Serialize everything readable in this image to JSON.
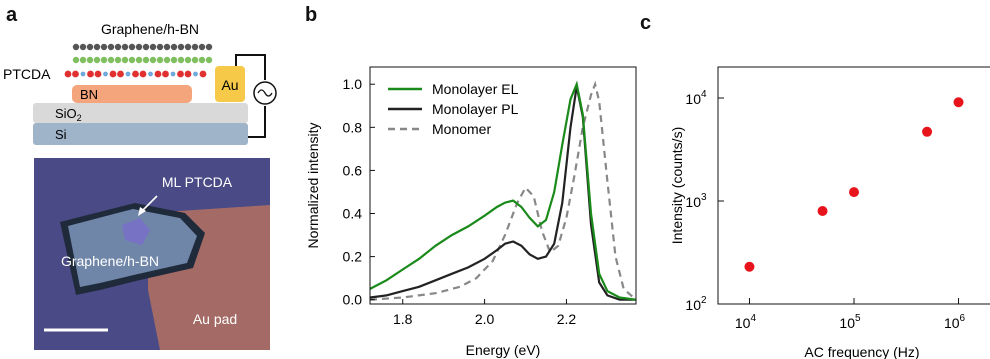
{
  "panels": {
    "a": {
      "letter": "a",
      "schematic": {
        "top_layer_label": "Graphene/h-BN",
        "ptcda_label": "PTCDA",
        "bn_label": "BN",
        "sio2_label": "SiO",
        "sio2_sub": "2",
        "si_label": "Si",
        "electrode_label": "Au",
        "colors": {
          "bn": "#f4a57c",
          "sio2": "#d9d9d9",
          "si": "#9fb4c8",
          "au": "#f7c948",
          "graphene": "#555555",
          "hbn": "#7fbf5f",
          "ptcda_red": "#e03030",
          "ptcda_blue": "#6fa8dc"
        }
      },
      "micrograph": {
        "ml_label": "ML PTCDA",
        "flake_label": "Graphene/h-BN",
        "pad_label": "Au pad",
        "colors": {
          "background": "#4a4a86",
          "pad": "#a46b66",
          "flake": "#6f86a8"
        }
      }
    },
    "b": {
      "letter": "b"
    },
    "c": {
      "letter": "c"
    }
  },
  "chart_data": [
    {
      "type": "line",
      "panel": "b",
      "title": "",
      "xlabel": "Energy (eV)",
      "ylabel": "Normalized intensity",
      "xlim": [
        1.72,
        2.37
      ],
      "ylim": [
        -0.02,
        1.08
      ],
      "xticks": [
        "1.8",
        "2.0",
        "2.2"
      ],
      "xtick_values": [
        1.8,
        2.0,
        2.2
      ],
      "yticks": [
        "0.0",
        "0.2",
        "0.4",
        "0.6",
        "0.8",
        "1.0"
      ],
      "ytick_values": [
        0.0,
        0.2,
        0.4,
        0.6,
        0.8,
        1.0
      ],
      "legend_position": "top-left",
      "series": [
        {
          "name": "Monolayer EL",
          "color": "#1a8a1a",
          "style": "solid",
          "x": [
            1.72,
            1.76,
            1.8,
            1.84,
            1.88,
            1.92,
            1.96,
            2.0,
            2.03,
            2.05,
            2.07,
            2.09,
            2.11,
            2.13,
            2.15,
            2.17,
            2.19,
            2.21,
            2.225,
            2.24,
            2.26,
            2.28,
            2.3,
            2.33,
            2.37
          ],
          "y": [
            0.05,
            0.09,
            0.14,
            0.19,
            0.25,
            0.3,
            0.34,
            0.39,
            0.43,
            0.45,
            0.46,
            0.43,
            0.38,
            0.34,
            0.37,
            0.5,
            0.72,
            0.93,
            1.0,
            0.86,
            0.4,
            0.12,
            0.04,
            0.01,
            0.0
          ]
        },
        {
          "name": "Monolayer PL",
          "color": "#222222",
          "style": "solid",
          "x": [
            1.72,
            1.76,
            1.8,
            1.84,
            1.88,
            1.92,
            1.96,
            2.0,
            2.03,
            2.05,
            2.07,
            2.09,
            2.11,
            2.13,
            2.15,
            2.17,
            2.19,
            2.21,
            2.225,
            2.24,
            2.26,
            2.28,
            2.3,
            2.33,
            2.37
          ],
          "y": [
            0.01,
            0.02,
            0.04,
            0.06,
            0.09,
            0.12,
            0.15,
            0.19,
            0.23,
            0.26,
            0.27,
            0.25,
            0.21,
            0.19,
            0.2,
            0.26,
            0.45,
            0.8,
            0.99,
            0.85,
            0.35,
            0.08,
            0.02,
            0.0,
            0.0
          ]
        },
        {
          "name": "Monomer",
          "color": "#888888",
          "style": "dashed",
          "x": [
            1.72,
            1.8,
            1.88,
            1.94,
            1.98,
            2.02,
            2.05,
            2.08,
            2.1,
            2.12,
            2.14,
            2.16,
            2.18,
            2.2,
            2.22,
            2.24,
            2.26,
            2.27,
            2.28,
            2.3,
            2.32,
            2.34,
            2.37
          ],
          "y": [
            0.0,
            0.01,
            0.03,
            0.06,
            0.1,
            0.18,
            0.3,
            0.45,
            0.52,
            0.48,
            0.32,
            0.22,
            0.25,
            0.38,
            0.58,
            0.8,
            0.95,
            1.0,
            0.92,
            0.55,
            0.2,
            0.05,
            0.0
          ]
        }
      ]
    },
    {
      "type": "scatter",
      "panel": "c",
      "title": "",
      "xlabel": "AC frequency (Hz)",
      "ylabel": "Intensity (counts/s)",
      "xscale": "log",
      "yscale": "log",
      "xlim": [
        5000,
        2000000
      ],
      "ylim": [
        100,
        20000
      ],
      "xticks": [
        {
          "base": "10",
          "exp": "4",
          "value": 10000
        },
        {
          "base": "10",
          "exp": "5",
          "value": 100000
        },
        {
          "base": "10",
          "exp": "6",
          "value": 1000000
        }
      ],
      "yticks": [
        {
          "base": "10",
          "exp": "2",
          "value": 100
        },
        {
          "base": "10",
          "exp": "3",
          "value": 1000
        },
        {
          "base": "10",
          "exp": "4",
          "value": 10000
        }
      ],
      "point_color": "#e8141b",
      "series": [
        {
          "x": [
            10000,
            50000,
            100000,
            500000,
            1000000
          ],
          "y": [
            230,
            800,
            1220,
            4700,
            9100
          ]
        }
      ]
    }
  ]
}
